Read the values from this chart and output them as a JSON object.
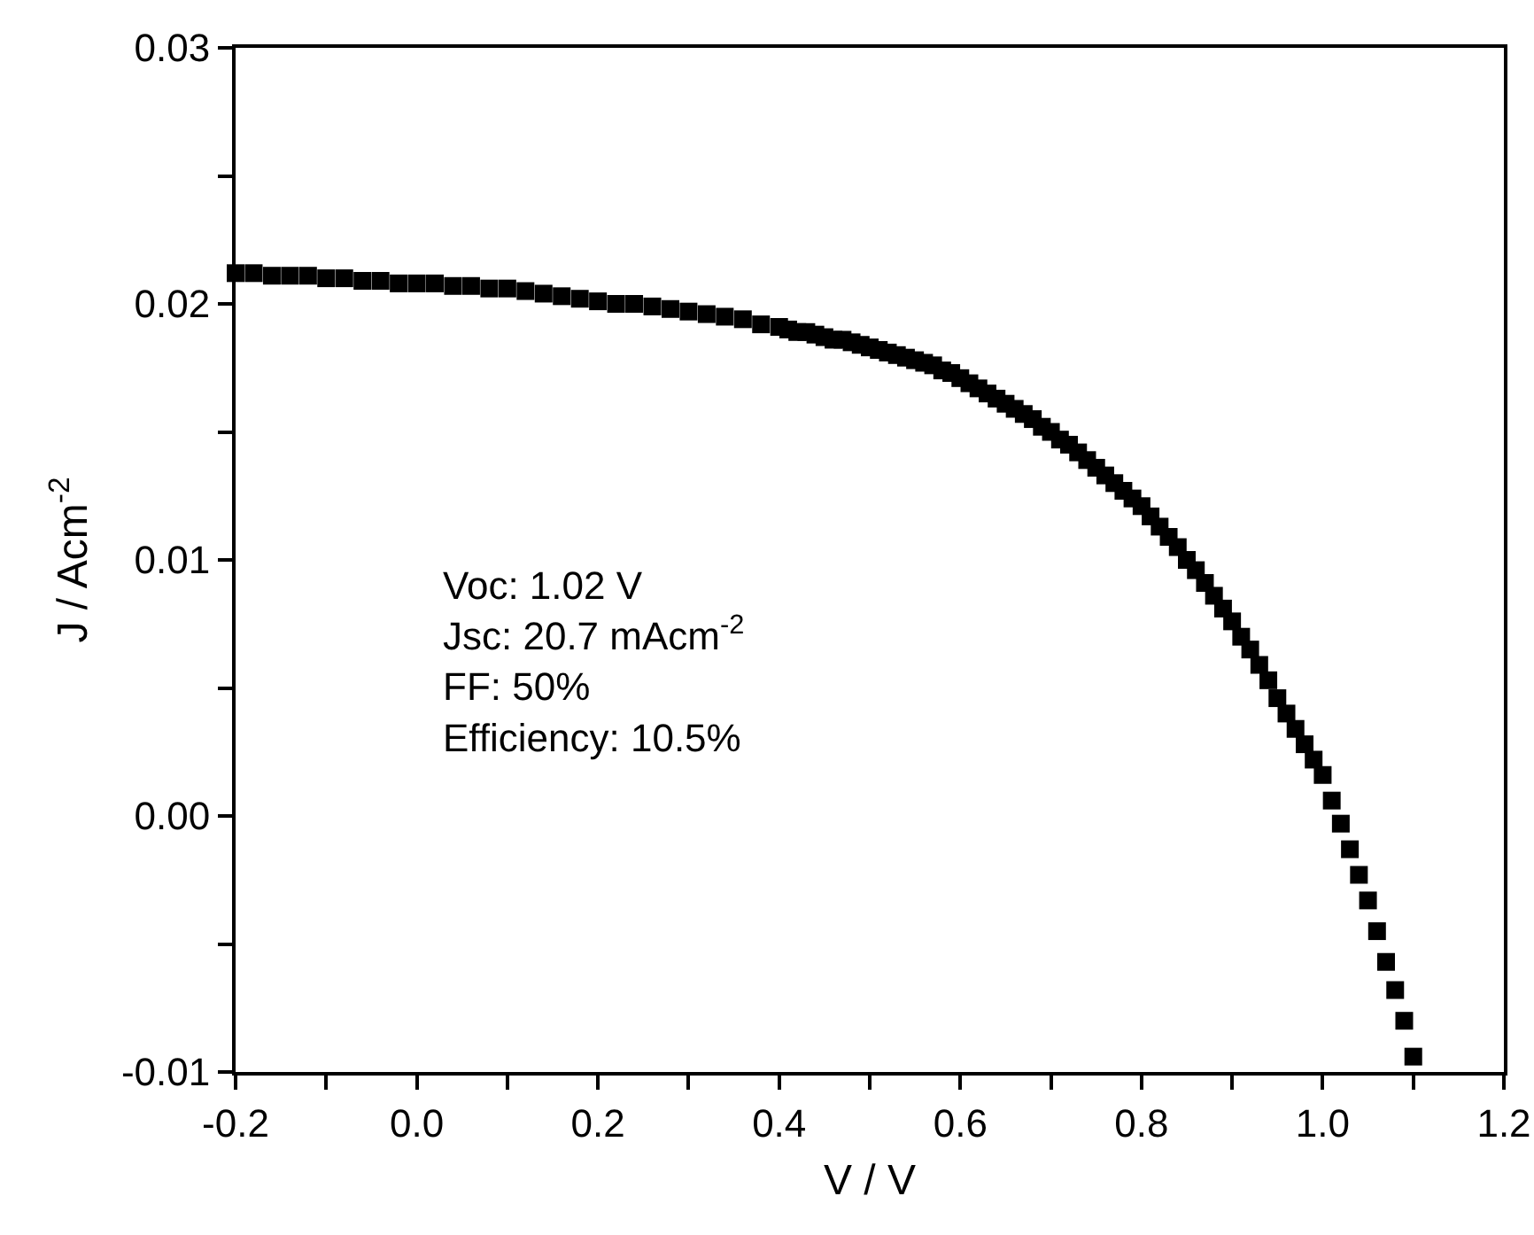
{
  "chart_data": {
    "type": "scatter",
    "xlabel": "V / V",
    "ylabel": "J / Acm$^{-2}$",
    "annotations": [
      "Voc: 1.02 V",
      "Jsc: 20.7 mAcm$^{-2}$",
      "FF: 50%",
      "Efficiency: 10.5%"
    ],
    "marker": "square",
    "grid": false,
    "xlim": [
      -0.2,
      1.2
    ],
    "ylim": [
      -0.01,
      0.03
    ],
    "xticks": [
      "-0.2",
      {
        "value": -0.1,
        "label": null
      },
      {
        "value": 0,
        "label": "0.0"
      },
      {
        "value": 0.1,
        "label": null
      },
      {
        "value": 0.2,
        "label": "0.2"
      },
      {
        "value": 0.3,
        "label": null
      },
      {
        "value": 0.4,
        "label": "0.4"
      },
      {
        "value": 0.5,
        "label": null
      },
      {
        "value": 0.6,
        "label": "0.6"
      },
      {
        "value": 0.7,
        "label": null
      },
      {
        "value": 0.8,
        "label": "0.8"
      },
      {
        "value": 0.9,
        "label": null
      },
      {
        "value": 1,
        "label": "1.0"
      },
      {
        "value": 1.1,
        "label": null
      },
      {
        "value": 1.2,
        "label": "1.2"
      }
    ],
    "yticks": [
      {
        "value": -0.01,
        "label": "-0.01"
      },
      {
        "value": -0.005,
        "label": null
      },
      {
        "value": 0,
        "label": "0.00"
      },
      {
        "value": 0.005,
        "label": null
      },
      {
        "value": 0.01,
        "label": "0.01"
      },
      {
        "value": 0.015,
        "label": null
      },
      {
        "value": 0.02,
        "label": "0.02"
      },
      {
        "value": 0.025,
        "label": null
      },
      {
        "value": 0.03,
        "label": "0.03"
      }
    ],
    "x": [
      -0.2,
      -0.18,
      -0.16,
      -0.14,
      -0.12,
      -0.1,
      -0.08,
      -0.06,
      -0.04,
      -0.02,
      0,
      0.02,
      0.04,
      0.06,
      0.08,
      0.1,
      0.12,
      0.14,
      0.16,
      0.18,
      0.2,
      0.22,
      0.24,
      0.26,
      0.28,
      0.3,
      0.32,
      0.34,
      0.36,
      0.38,
      0.4,
      0.41,
      0.42,
      0.43,
      0.44,
      0.45,
      0.46,
      0.47,
      0.48,
      0.49,
      0.5,
      0.51,
      0.52,
      0.53,
      0.54,
      0.55,
      0.56,
      0.57,
      0.58,
      0.59,
      0.6,
      0.61,
      0.62,
      0.63,
      0.64,
      0.65,
      0.66,
      0.67,
      0.68,
      0.69,
      0.7,
      0.71,
      0.72,
      0.73,
      0.74,
      0.75,
      0.76,
      0.77,
      0.78,
      0.79,
      0.8,
      0.81,
      0.82,
      0.83,
      0.84,
      0.85,
      0.86,
      0.87,
      0.88,
      0.89,
      0.9,
      0.91,
      0.92,
      0.93,
      0.94,
      0.95,
      0.96,
      0.97,
      0.98,
      0.99,
      1,
      1.01,
      1.02,
      1.03,
      1.04,
      1.05,
      1.06,
      1.07,
      1.08,
      1.09,
      1.1
    ],
    "series": [
      {
        "color": "#000000",
        "values": [
          0.0212,
          0.0212,
          0.0211,
          0.0211,
          0.0211,
          0.021,
          0.021,
          0.0209,
          0.0209,
          0.0208,
          0.0208,
          0.0208,
          0.0207,
          0.0207,
          0.0206,
          0.0206,
          0.0205,
          0.0204,
          0.0203,
          0.0202,
          0.0201,
          0.02,
          0.02,
          0.0199,
          0.0198,
          0.0197,
          0.0196,
          0.0195,
          0.0194,
          0.0192,
          0.0191,
          0.019,
          0.0189,
          0.0189,
          0.0188,
          0.0187,
          0.0186,
          0.0186,
          0.0185,
          0.0184,
          0.0183,
          0.0182,
          0.0181,
          0.018,
          0.0179,
          0.0178,
          0.0177,
          0.0176,
          0.0174,
          0.0173,
          0.0171,
          0.0169,
          0.0167,
          0.0165,
          0.0163,
          0.0161,
          0.0159,
          0.0157,
          0.0155,
          0.0152,
          0.015,
          0.0147,
          0.0145,
          0.0142,
          0.0139,
          0.0136,
          0.0133,
          0.013,
          0.0127,
          0.0124,
          0.0121,
          0.0117,
          0.0113,
          0.0109,
          0.0105,
          0.01,
          0.0096,
          0.0091,
          0.0086,
          0.0081,
          0.0076,
          0.007,
          0.0065,
          0.0059,
          0.0053,
          0.0046,
          0.004,
          0.0034,
          0.0028,
          0.0022,
          0.0016,
          0.0006,
          -0.0003,
          -0.0013,
          -0.0023,
          -0.0033,
          -0.0045,
          -0.0057,
          -0.0068,
          -0.008,
          -0.0094
        ]
      }
    ]
  }
}
